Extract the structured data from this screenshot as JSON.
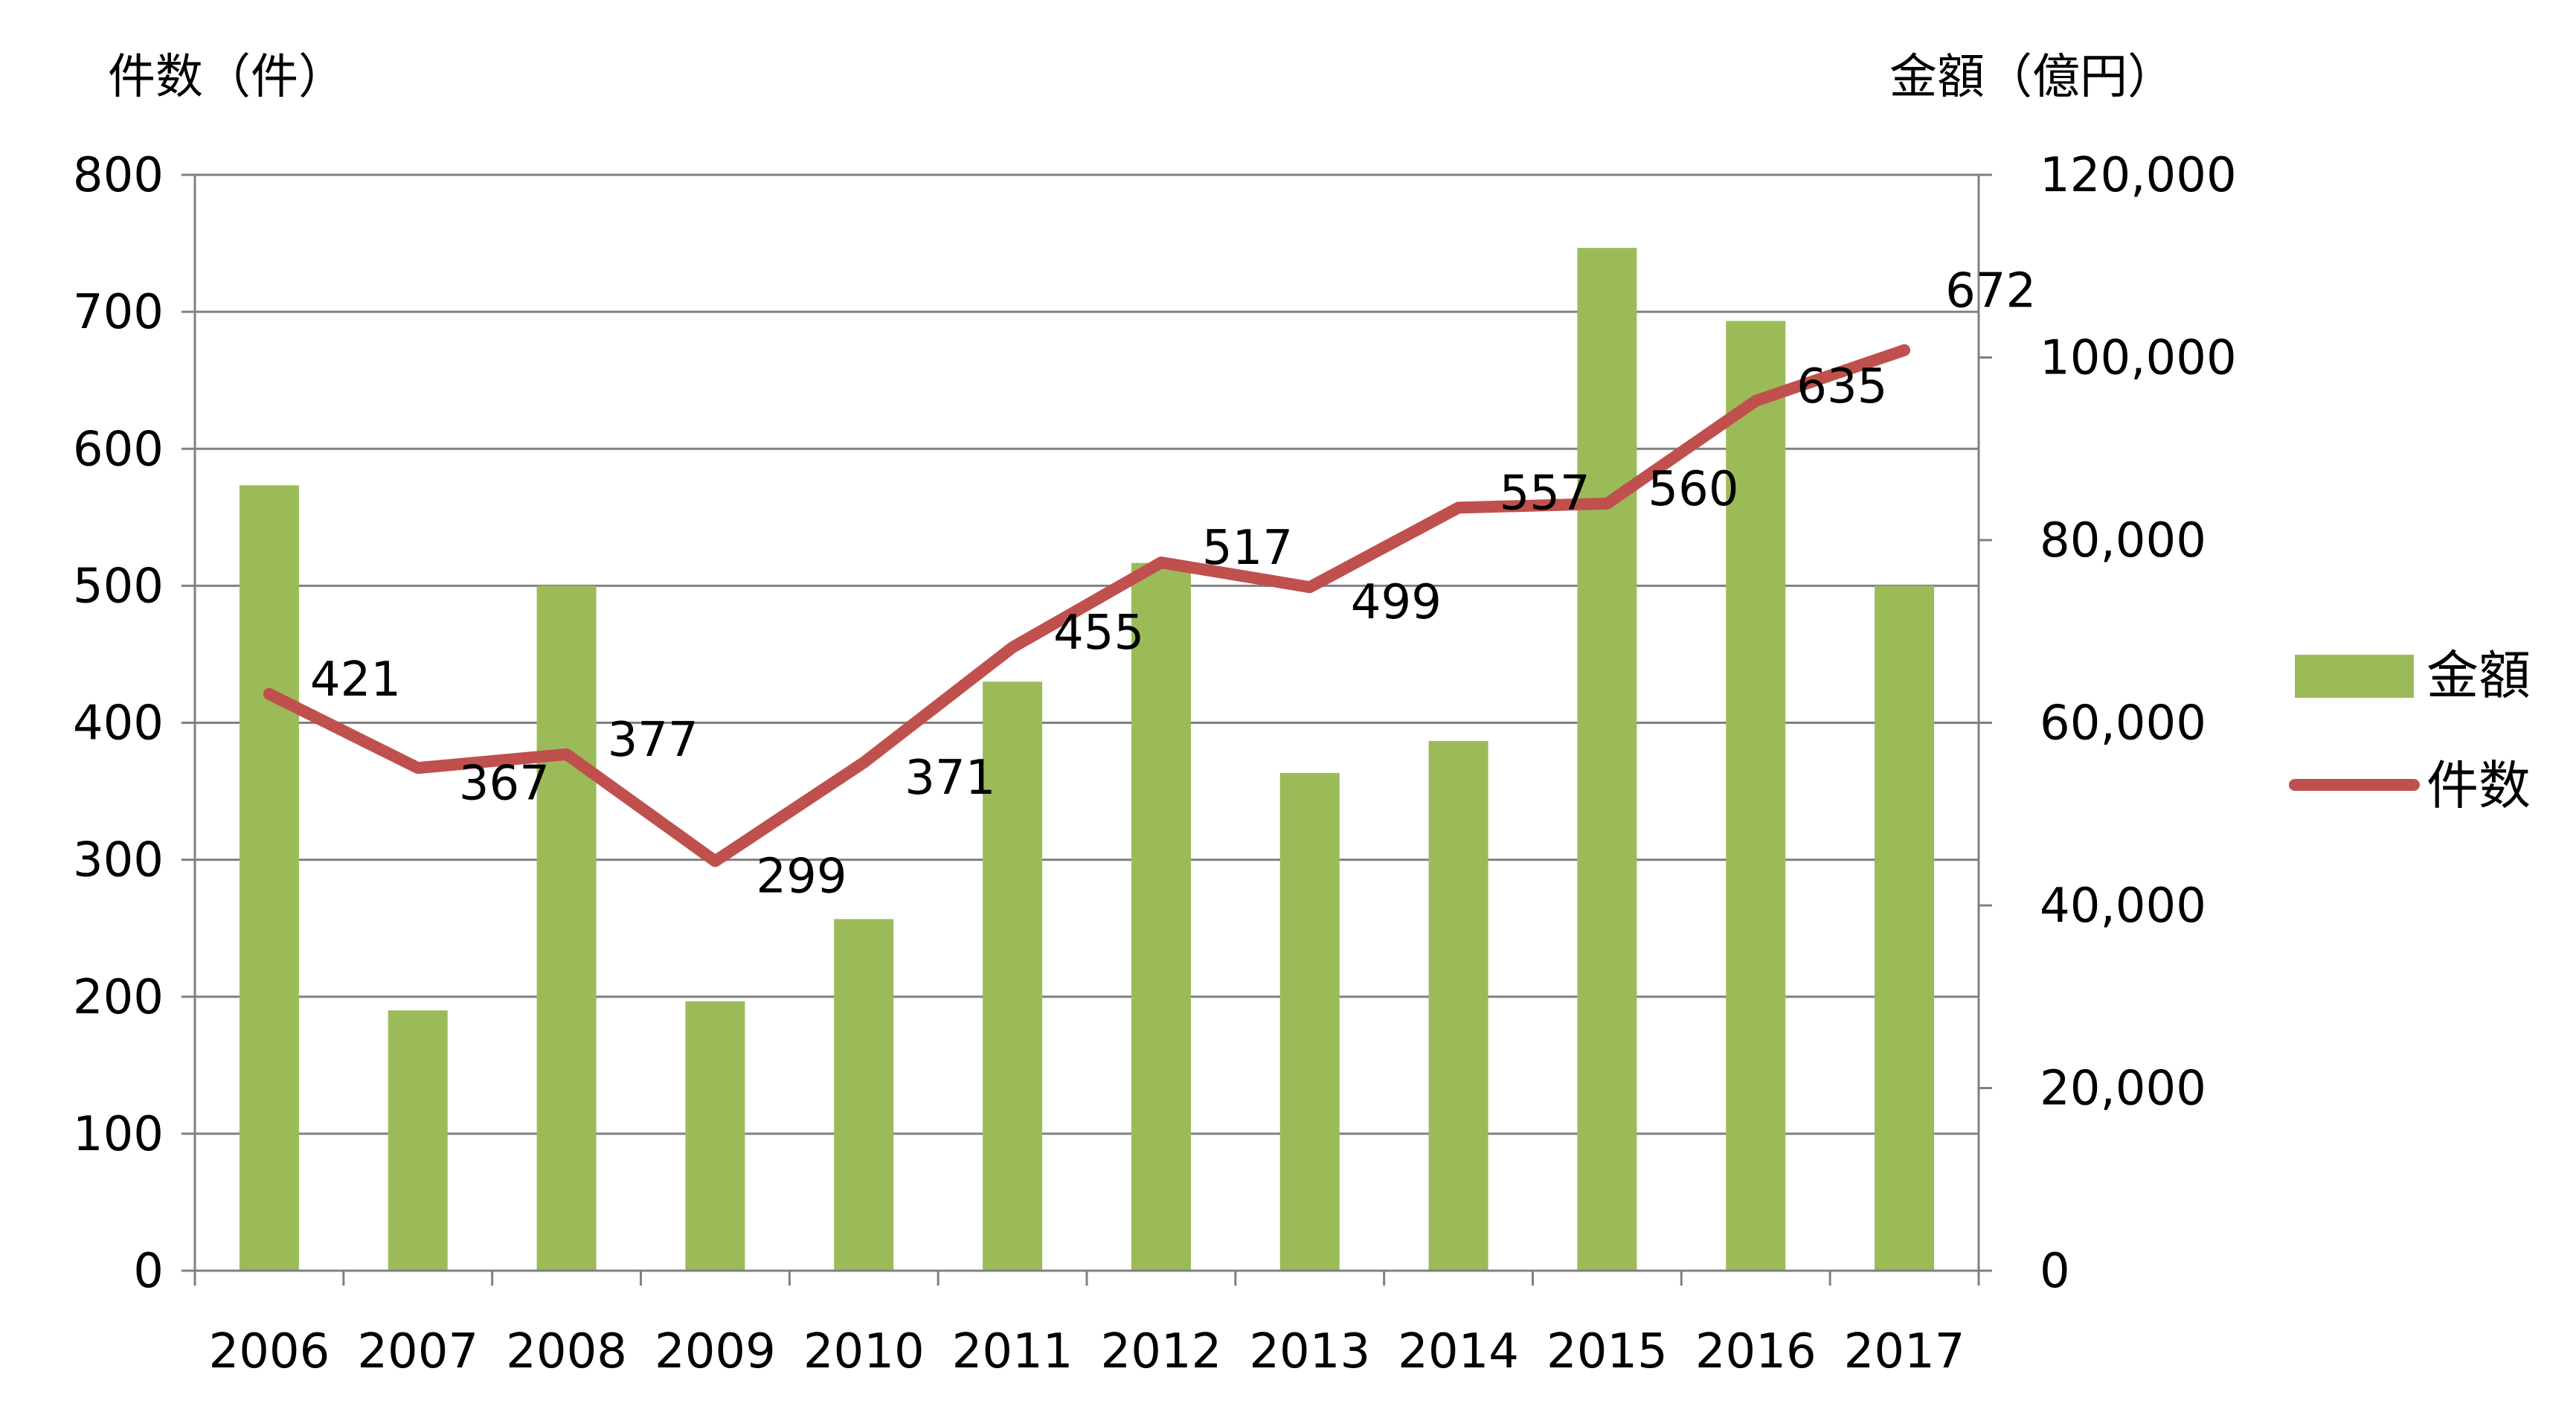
{
  "chart_data": {
    "type": "bar",
    "categories": [
      "2006",
      "2007",
      "2008",
      "2009",
      "2010",
      "2011",
      "2012",
      "2013",
      "2014",
      "2015",
      "2016",
      "2017"
    ],
    "left_axis": {
      "title": "件数（件）",
      "range": [
        0,
        800
      ],
      "ticks": [
        "0",
        "100",
        "200",
        "300",
        "400",
        "500",
        "600",
        "700",
        "800"
      ],
      "tick_values": [
        0,
        100,
        200,
        300,
        400,
        500,
        600,
        700,
        800
      ]
    },
    "right_axis": {
      "title": "金額（億円）",
      "range": [
        0,
        120000
      ],
      "ticks": [
        "0",
        "20,000",
        "40,000",
        "60,000",
        "80,000",
        "100,000",
        "120,000"
      ],
      "tick_values": [
        0,
        20000,
        40000,
        60000,
        80000,
        100000,
        120000
      ]
    },
    "series": [
      {
        "name": "金額",
        "type": "bar",
        "axis": "right",
        "color": "#9bbb59",
        "values": [
          86000,
          28500,
          75000,
          29500,
          38500,
          64500,
          77500,
          54500,
          58000,
          112000,
          104000,
          75000
        ]
      },
      {
        "name": "件数",
        "type": "line",
        "axis": "left",
        "color": "#c0504d",
        "values": [
          421,
          367,
          377,
          299,
          371,
          455,
          517,
          499,
          557,
          560,
          635,
          672
        ],
        "labels": [
          "421",
          "367",
          "377",
          "299",
          "371",
          "455",
          "517",
          "499",
          "557",
          "560",
          "635",
          "672"
        ]
      }
    ],
    "grid": true,
    "legend": "right"
  }
}
